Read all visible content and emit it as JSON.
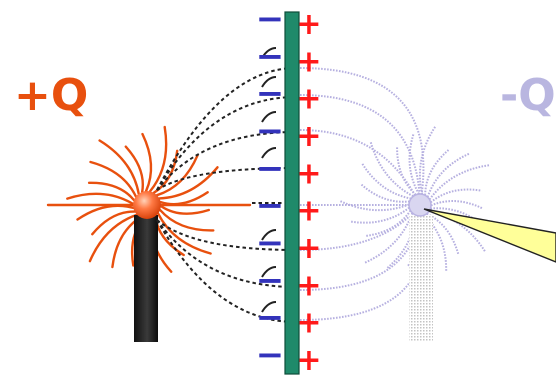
{
  "diagram": {
    "positive_charge": {
      "label": "+Q",
      "color": "#e8500e"
    },
    "negative_charge": {
      "label": "-Q",
      "color": "#b9b6e0"
    },
    "plate": {
      "color": "#1f8a6a",
      "left_side_sign": "−",
      "right_side_sign": "+",
      "sign_count": 10
    },
    "colors": {
      "minus_sign": "#3333bb",
      "plus_sign": "#ff1a1a",
      "field_line_left": "#e8500e",
      "field_line_right": "#b6b0e0",
      "dashed_line": "#222222",
      "probe_fill": "#ffff99"
    }
  }
}
